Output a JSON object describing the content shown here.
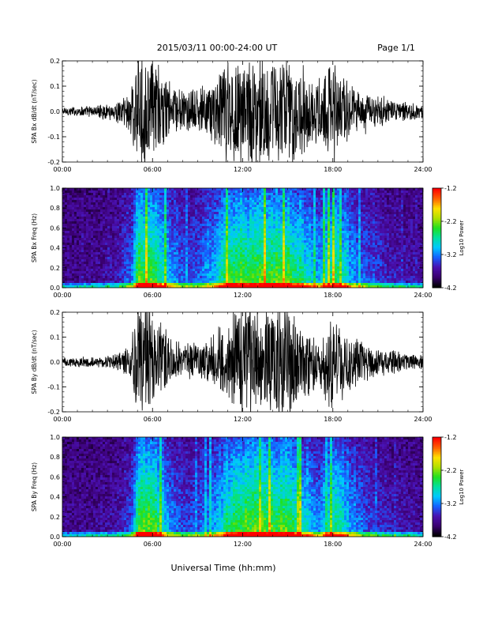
{
  "header": {
    "title": "2015/03/11  00:00-24:00 UT",
    "page": "Page 1/1"
  },
  "footer": {
    "xlabel": "Universal Time (hh:mm)"
  },
  "colors": {
    "trace": "#000000",
    "colormap": [
      "#000000",
      "#3a0070",
      "#4a10b0",
      "#1560ff",
      "#00c8ff",
      "#00e0a0",
      "#20e020",
      "#b0e000",
      "#ffe000",
      "#ff6000",
      "#ff0000"
    ]
  },
  "chart_data": [
    {
      "type": "line",
      "ylabel": "SPA Bx dB/dt (nT/sec)",
      "xlim": [
        "00:00",
        "24:00"
      ],
      "ylim": [
        -0.2,
        0.2
      ],
      "yticks": [
        "0.2",
        "0.1",
        "0.0",
        "-0.1",
        "-0.2"
      ],
      "xticks": [
        "00:00",
        "06:00",
        "12:00",
        "18:00",
        "24:00"
      ],
      "envelope": {
        "hours": [
          0,
          2,
          3.5,
          4.5,
          5,
          6,
          7,
          8,
          9,
          10,
          11,
          12,
          13,
          14,
          15,
          16,
          17,
          18,
          19,
          20,
          21,
          22,
          23,
          24
        ],
        "amplitude": [
          0.02,
          0.025,
          0.04,
          0.1,
          0.25,
          0.25,
          0.15,
          0.09,
          0.1,
          0.14,
          0.25,
          0.25,
          0.25,
          0.25,
          0.25,
          0.2,
          0.13,
          0.25,
          0.15,
          0.1,
          0.07,
          0.05,
          0.04,
          0.03
        ]
      }
    },
    {
      "type": "heatmap",
      "ylabel": "SPA Bx Freq (Hz)",
      "xlim": [
        "00:00",
        "24:00"
      ],
      "ylim": [
        0,
        1.0
      ],
      "yticks": [
        "1.0",
        "0.8",
        "0.6",
        "0.4",
        "0.2",
        "0.0"
      ],
      "xticks": [
        "00:00",
        "06:00",
        "12:00",
        "18:00",
        "24:00"
      ],
      "colorbar": {
        "label": "Log10 Power",
        "range": [
          -4.2,
          -1.2
        ],
        "ticks": [
          "-1.2",
          "-2.2",
          "-3.2",
          "-4.2"
        ]
      }
    },
    {
      "type": "line",
      "ylabel": "SPA By dB/dt (nT/sec)",
      "xlim": [
        "00:00",
        "24:00"
      ],
      "ylim": [
        -0.2,
        0.2
      ],
      "yticks": [
        "0.2",
        "0.1",
        "0.0",
        "-0.1",
        "-0.2"
      ],
      "xticks": [
        "00:00",
        "06:00",
        "12:00",
        "18:00",
        "24:00"
      ],
      "envelope": {
        "hours": [
          0,
          2,
          3.5,
          4.5,
          5,
          6,
          7,
          8,
          9,
          10,
          11,
          12,
          13,
          14,
          15,
          16,
          17,
          18,
          19,
          20,
          21,
          22,
          23,
          24
        ],
        "amplitude": [
          0.02,
          0.025,
          0.035,
          0.08,
          0.25,
          0.25,
          0.13,
          0.08,
          0.09,
          0.12,
          0.22,
          0.25,
          0.25,
          0.25,
          0.25,
          0.18,
          0.12,
          0.22,
          0.14,
          0.09,
          0.06,
          0.05,
          0.04,
          0.03
        ]
      }
    },
    {
      "type": "heatmap",
      "ylabel": "SPA By Freq (Hz)",
      "xlim": [
        "00:00",
        "24:00"
      ],
      "ylim": [
        0,
        1.0
      ],
      "yticks": [
        "1.0",
        "0.8",
        "0.6",
        "0.4",
        "0.2",
        "0.0"
      ],
      "xticks": [
        "00:00",
        "06:00",
        "12:00",
        "18:00",
        "24:00"
      ],
      "colorbar": {
        "label": "Log10 Power",
        "range": [
          -4.2,
          -1.2
        ],
        "ticks": [
          "-1.2",
          "-2.2",
          "-3.2",
          "-4.2"
        ]
      }
    }
  ]
}
